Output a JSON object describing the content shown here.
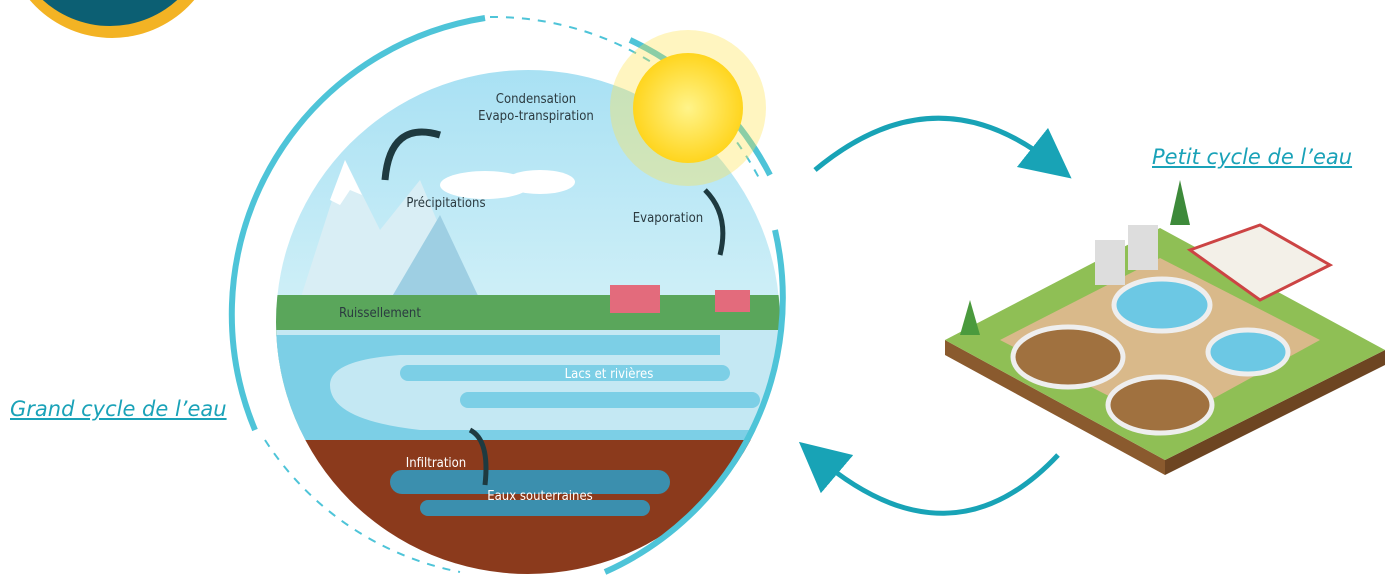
{
  "links": {
    "grand_cycle": "Grand cycle de l’eau",
    "petit_cycle": "Petit cycle de l’eau"
  },
  "diagram": {
    "labels": {
      "condensation": "Condensation",
      "evapotranspiration": "Evapo-transpiration",
      "precipitations": "Précipitations",
      "evaporation": "Evaporation",
      "ruissellement": "Ruissellement",
      "lacs": "Lacs et rivières",
      "infiltration": "Infiltration",
      "eaux_souterraines": "Eaux souterraines"
    }
  }
}
